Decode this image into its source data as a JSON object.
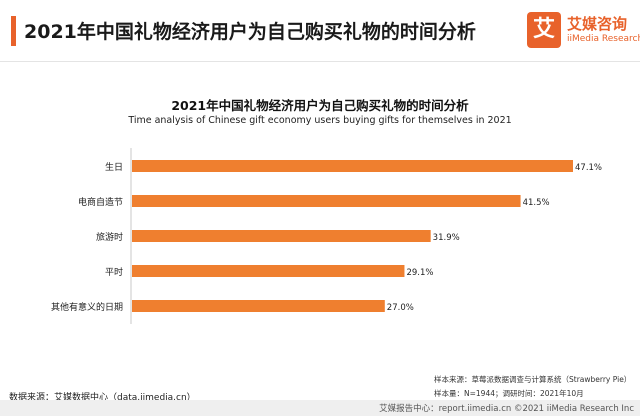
{
  "header": {
    "title": "2021年中国礼物经济用户为自己购买礼物的时间分析",
    "logo_mark": "艾",
    "logo_cn": "艾媒咨询",
    "logo_en": "iiMedia Research"
  },
  "colors": {
    "accent": "#e8622b",
    "bar": "#ef7f2f"
  },
  "chart_data": {
    "type": "bar",
    "orientation": "horizontal",
    "title": "2021年中国礼物经济用户为自己购买礼物的时间分析",
    "subtitle": "Time analysis of Chinese gift economy users buying gifts for themselves in 2021",
    "categories": [
      "生日",
      "电商自造节",
      "旅游时",
      "平时",
      "其他有意义的日期"
    ],
    "values": [
      47.1,
      41.5,
      31.9,
      29.1,
      27.0
    ],
    "value_labels": [
      "47.1%",
      "41.5%",
      "31.9%",
      "29.1%",
      "27.0%"
    ],
    "unit": "%",
    "xlim": [
      0,
      47.1
    ],
    "grid": false,
    "legend": "none"
  },
  "notes": {
    "sample_source": "样本来源：草莓派数据调查与计算系统（Strawberry Pie）",
    "sample_info": "样本量：N=1944；调研时间：2021年10月"
  },
  "source": "数据来源：艾媒数据中心（data.iimedia.cn）",
  "footer": "艾媒报告中心：report.iimedia.cn  ©2021  iiMedia Research  Inc"
}
